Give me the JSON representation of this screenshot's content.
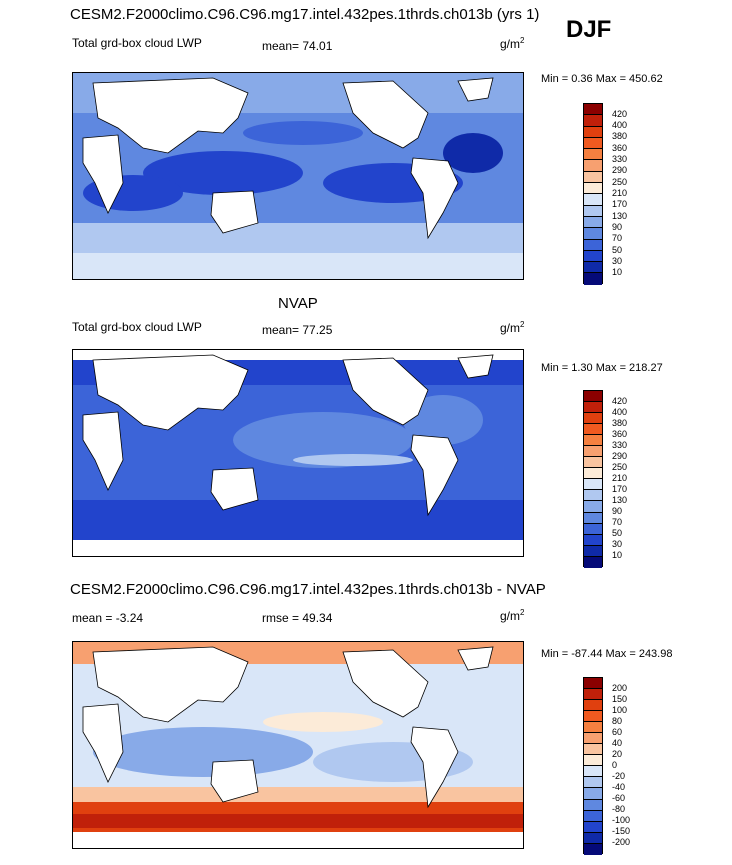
{
  "header": {
    "season": "DJF"
  },
  "panels": [
    {
      "title": "CESM2.F2000climo.C96.C96.mg17.intel.432pes.1thrds.ch013b (yrs 1)",
      "field": "Total grd-box cloud LWP",
      "stat_text": "mean=  74.01",
      "unit": "g/m",
      "unit_exp": "2",
      "minmax": "Min =   0.36 Max = 450.62",
      "colorbar": {
        "labels": [
          "420",
          "400",
          "380",
          "360",
          "330",
          "290",
          "250",
          "210",
          "170",
          "130",
          "90",
          "70",
          "50",
          "30",
          "10"
        ],
        "colors": [
          "#8b0000",
          "#c0200a",
          "#e0400f",
          "#f05a20",
          "#f58040",
          "#f7a070",
          "#f9c4a0",
          "#fcebd8",
          "#d9e6f8",
          "#b0c8f0",
          "#88aae8",
          "#5f88e0",
          "#3c64d8",
          "#2244cc",
          "#0f2aa8",
          "#050a78"
        ]
      }
    },
    {
      "title": "NVAP",
      "field": "Total grd-box cloud LWP",
      "stat_text": "mean=  77.25",
      "unit": "g/m",
      "unit_exp": "2",
      "minmax": "Min =   1.30 Max = 218.27",
      "colorbar": {
        "labels": [
          "420",
          "400",
          "380",
          "360",
          "330",
          "290",
          "250",
          "210",
          "170",
          "130",
          "90",
          "70",
          "50",
          "30",
          "10"
        ],
        "colors": [
          "#8b0000",
          "#c0200a",
          "#e0400f",
          "#f05a20",
          "#f58040",
          "#f7a070",
          "#f9c4a0",
          "#fcebd8",
          "#d9e6f8",
          "#b0c8f0",
          "#88aae8",
          "#5f88e0",
          "#3c64d8",
          "#2244cc",
          "#0f2aa8",
          "#050a78"
        ]
      }
    },
    {
      "title": "CESM2.F2000climo.C96.C96.mg17.intel.432pes.1thrds.ch013b - NVAP",
      "field": "",
      "stat_text": "mean =  -3.24",
      "rmse_text": "rmse =  49.34",
      "unit": "g/m",
      "unit_exp": "2",
      "minmax": "Min = -87.44 Max = 243.98",
      "colorbar": {
        "labels": [
          "200",
          "150",
          "100",
          "80",
          "60",
          "40",
          "20",
          "0",
          "-20",
          "-40",
          "-60",
          "-80",
          "-100",
          "-150",
          "-200"
        ],
        "colors": [
          "#8b0000",
          "#c0200a",
          "#e0400f",
          "#f05a20",
          "#f58040",
          "#f7a070",
          "#f9c4a0",
          "#fcebd8",
          "#d9e6f8",
          "#b0c8f0",
          "#88aae8",
          "#5f88e0",
          "#3c64d8",
          "#2244cc",
          "#0f2aa8",
          "#050a78"
        ]
      }
    }
  ]
}
